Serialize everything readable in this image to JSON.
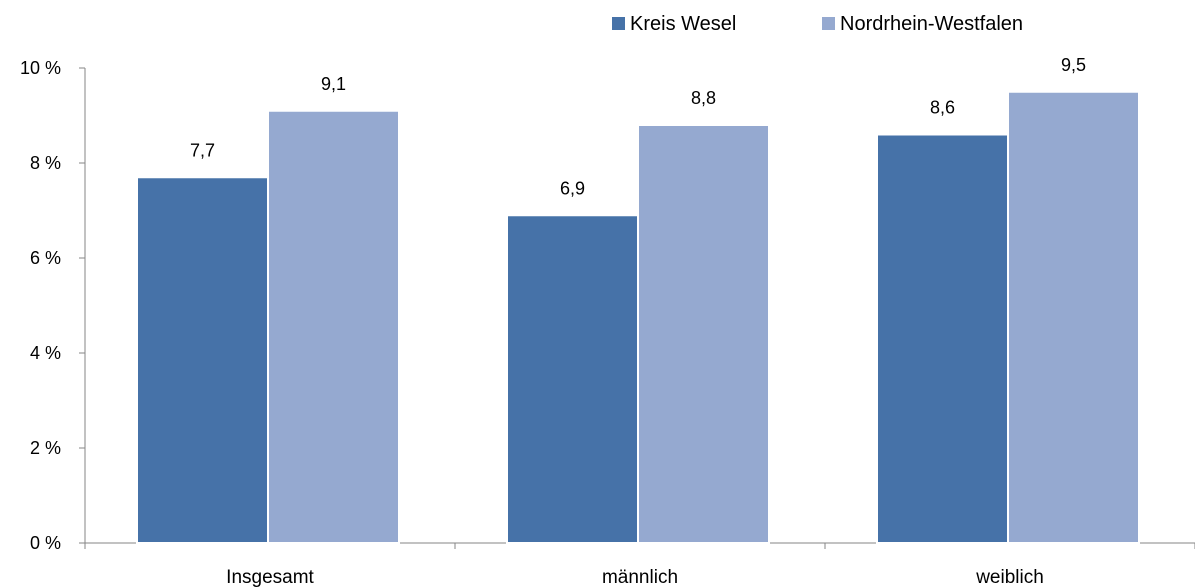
{
  "chart_data": {
    "type": "bar",
    "categories": [
      "Insgesamt",
      "männlich",
      "weiblich"
    ],
    "series": [
      {
        "name": "Kreis Wesel",
        "color": "#4672A8",
        "values": [
          7.7,
          6.9,
          8.6
        ],
        "labels": [
          "7,7",
          "6,9",
          "8,6"
        ]
      },
      {
        "name": "Nordrhein-Westfalen",
        "color": "#95A9D0",
        "values": [
          9.1,
          8.8,
          9.5
        ],
        "labels": [
          "9,1",
          "8,8",
          "9,5"
        ]
      }
    ],
    "y_ticks": [
      0,
      2,
      4,
      6,
      8,
      10
    ],
    "y_tick_labels": [
      "0 %",
      "2 %",
      "4 %",
      "6 %",
      "8 %",
      "10 %"
    ],
    "ylim": [
      0,
      10
    ],
    "grid": false,
    "legend_position": "top-right",
    "title": "",
    "xlabel": "",
    "ylabel": ""
  }
}
